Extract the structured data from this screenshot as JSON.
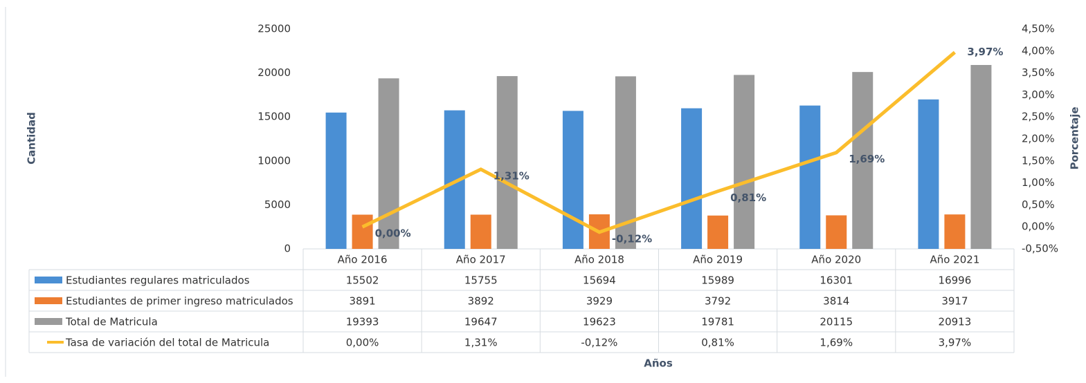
{
  "chart_data": {
    "type": "bar",
    "categories": [
      "Año 2016",
      "Año 2017",
      "Año 2018",
      "Año 2019",
      "Año 2020",
      "Año 2021"
    ],
    "series": [
      {
        "name": "Estudiantes regulares matriculados",
        "color": "#4a8fd4",
        "values": [
          15502,
          15755,
          15694,
          15989,
          16301,
          16996
        ]
      },
      {
        "name": "Estudiantes de primer ingreso matriculados",
        "color": "#ed7d31",
        "values": [
          3891,
          3892,
          3929,
          3792,
          3814,
          3917
        ]
      },
      {
        "name": "Total de Matricula",
        "color": "#9a9a9a",
        "values": [
          19393,
          19647,
          19623,
          19781,
          20115,
          20913
        ]
      },
      {
        "name": "Tasa de variación del total de Matricula",
        "color": "#fbbd2c",
        "type": "line",
        "axis": "y2",
        "values": [
          0.0,
          1.31,
          -0.12,
          0.81,
          1.69,
          3.97
        ],
        "value_labels": [
          "0,00%",
          "1,31%",
          "-0,12%",
          "0,81%",
          "1,69%",
          "3,97%"
        ]
      }
    ],
    "ylim": [
      0,
      25000
    ],
    "yticks": [
      0,
      5000,
      10000,
      15000,
      20000,
      25000
    ],
    "y2lim": [
      -0.5,
      4.5
    ],
    "y2ticks": [
      {
        "value": -0.5,
        "label": "-0,50%"
      },
      {
        "value": 0,
        "label": "0,00%"
      },
      {
        "value": 0.5,
        "label": "0,50%"
      },
      {
        "value": 1,
        "label": "1,00%"
      },
      {
        "value": 1.5,
        "label": "1,50%"
      },
      {
        "value": 2,
        "label": "2,00%"
      },
      {
        "value": 2.5,
        "label": "2,50%"
      },
      {
        "value": 3,
        "label": "3,00%"
      },
      {
        "value": 3.5,
        "label": "3,50%"
      },
      {
        "value": 4,
        "label": "4,00%"
      },
      {
        "value": 4.5,
        "label": "4,50%"
      }
    ],
    "ylabel": "Cantidad",
    "y2label": "Porcentaje",
    "xlabel": "Años",
    "grid": false
  }
}
